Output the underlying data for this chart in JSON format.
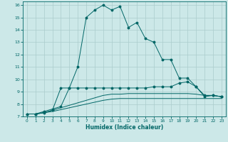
{
  "title": "",
  "xlabel": "Humidex (Indice chaleur)",
  "ylabel": "",
  "bg_color": "#cce8e8",
  "grid_color": "#aacccc",
  "line_color": "#006666",
  "xlim": [
    -0.5,
    23.5
  ],
  "ylim": [
    7,
    16.3
  ],
  "xticks": [
    0,
    1,
    2,
    3,
    4,
    5,
    6,
    7,
    8,
    9,
    10,
    11,
    12,
    13,
    14,
    15,
    16,
    17,
    18,
    19,
    20,
    21,
    22,
    23
  ],
  "yticks": [
    7,
    8,
    9,
    10,
    11,
    12,
    13,
    14,
    15,
    16
  ],
  "line1_x": [
    0,
    1,
    2,
    3,
    4,
    5,
    6,
    7,
    8,
    9,
    10,
    11,
    12,
    13,
    14,
    15,
    16,
    17,
    18,
    19,
    20,
    21,
    22,
    23
  ],
  "line1_y": [
    7.2,
    7.2,
    7.4,
    7.6,
    7.8,
    9.3,
    11.0,
    15.0,
    15.6,
    16.0,
    15.6,
    15.9,
    14.2,
    14.6,
    13.3,
    13.0,
    11.6,
    11.6,
    10.1,
    10.1,
    9.4,
    8.6,
    8.7,
    8.6
  ],
  "line2_x": [
    0,
    1,
    2,
    3,
    4,
    5,
    6,
    7,
    8,
    9,
    10,
    11,
    12,
    13,
    14,
    15,
    16,
    17,
    18,
    19,
    20,
    21,
    22,
    23
  ],
  "line2_y": [
    7.2,
    7.2,
    7.3,
    7.5,
    9.3,
    9.3,
    9.3,
    9.3,
    9.3,
    9.3,
    9.3,
    9.3,
    9.3,
    9.3,
    9.3,
    9.4,
    9.4,
    9.4,
    9.7,
    9.8,
    9.4,
    8.7,
    8.7,
    8.6
  ],
  "line3_x": [
    0,
    1,
    2,
    3,
    4,
    5,
    6,
    7,
    8,
    9,
    10,
    11,
    12,
    13,
    14,
    15,
    16,
    17,
    18,
    19,
    20,
    21,
    22,
    23
  ],
  "line3_y": [
    7.2,
    7.2,
    7.3,
    7.5,
    7.7,
    7.9,
    8.1,
    8.3,
    8.5,
    8.7,
    8.8,
    8.8,
    8.85,
    8.85,
    8.85,
    8.85,
    8.85,
    8.85,
    8.85,
    8.85,
    8.8,
    8.7,
    8.7,
    8.6
  ],
  "line4_x": [
    0,
    1,
    2,
    3,
    4,
    5,
    6,
    7,
    8,
    9,
    10,
    11,
    12,
    13,
    14,
    15,
    16,
    17,
    18,
    19,
    20,
    21,
    22,
    23
  ],
  "line4_y": [
    7.2,
    7.2,
    7.3,
    7.4,
    7.55,
    7.7,
    7.85,
    8.0,
    8.15,
    8.3,
    8.4,
    8.45,
    8.45,
    8.45,
    8.45,
    8.45,
    8.45,
    8.45,
    8.45,
    8.45,
    8.45,
    8.45,
    8.45,
    8.45
  ]
}
